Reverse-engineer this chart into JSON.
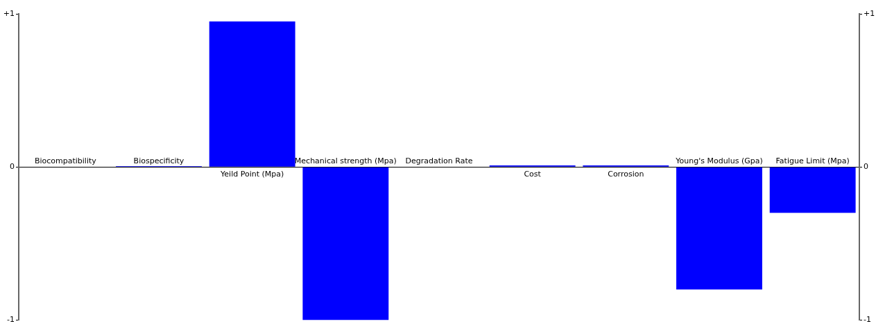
{
  "chart_data": {
    "type": "bar",
    "categories": [
      "Biocompatibility",
      "Biospecificity",
      "Yeild Point (Mpa)",
      "Mechanical strength (Mpa)",
      "Degradation Rate",
      "Cost",
      "Corrosion",
      "Young's Modulus (Gpa)",
      "Fatigue Limit (Mpa)"
    ],
    "values": [
      0,
      0.005,
      0.95,
      -1,
      0,
      0.01,
      0.01,
      -0.8,
      -0.3
    ],
    "color": "#0000ff",
    "ylim": [
      -1,
      1
    ],
    "yticks": [
      {
        "value": 1,
        "label": "+1"
      },
      0,
      -1
    ],
    "y2lim": [
      -1,
      1
    ],
    "y2ticks": [
      {
        "value": 1,
        "label": "+1"
      },
      0,
      -1
    ],
    "grid": false,
    "legend": false
  }
}
